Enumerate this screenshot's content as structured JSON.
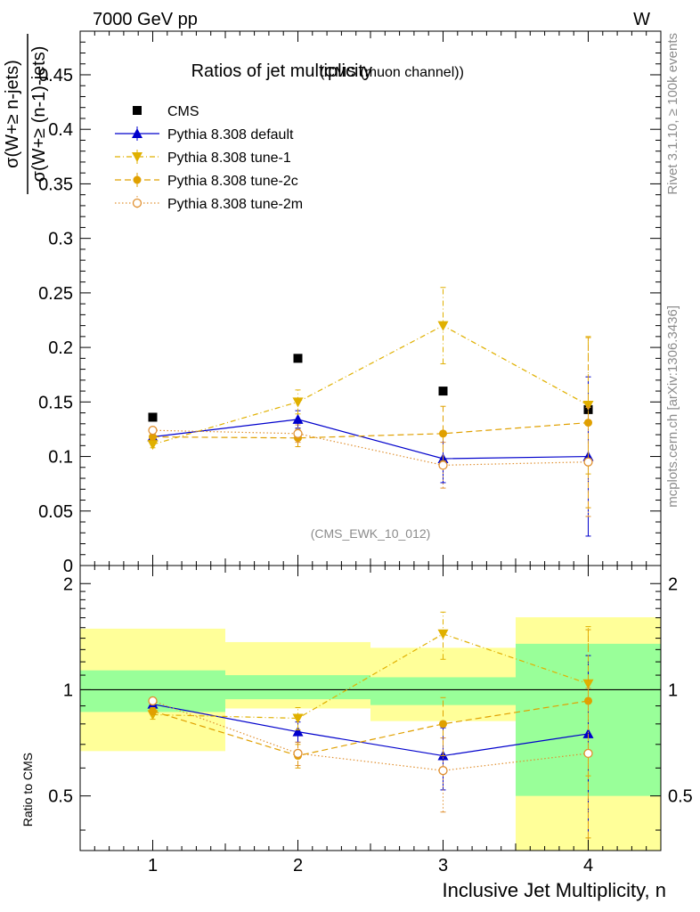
{
  "header": {
    "energy_label": "7000 GeV pp",
    "process_label": "W",
    "rivet_label": "Rivet 3.1.10, ≥ 100k events",
    "mcplots_label": "mcplots.cern.ch [arXiv:1306.3436]"
  },
  "chart_data": [
    {
      "type": "scatter",
      "title": "Ratios of jet multiplicity",
      "subtitle": "(CMS (muon channel))",
      "analysis_label": "(CMS_EWK_10_012)",
      "ylabel_numerator": "σ(W+≥ n-jets)",
      "ylabel_denominator": "σ(W+≥ (n-1)-jets)",
      "xlim": [
        0.5,
        4.5
      ],
      "ylim": [
        0,
        0.49
      ],
      "yticks": [
        0,
        0.05,
        0.1,
        0.15,
        0.2,
        0.25,
        0.3,
        0.35,
        0.4,
        0.45
      ],
      "ytick_labels": [
        "0",
        "0.05",
        "0.1",
        "0.15",
        "0.2",
        "0.25",
        "0.3",
        "0.35",
        "0.4",
        "0.45"
      ],
      "legend_position": "top-left",
      "series": [
        {
          "name": "CMS",
          "color": "#000000",
          "marker": "square",
          "line": "none",
          "x": [
            1,
            2,
            3,
            4
          ],
          "y": [
            0.136,
            0.19,
            0.16,
            0.143
          ]
        },
        {
          "name": "Pythia 8.308 default",
          "color": "#0000cc",
          "marker": "triangle-up",
          "line": "solid",
          "x": [
            1,
            2,
            3,
            4
          ],
          "y": [
            0.118,
            0.134,
            0.098,
            0.1
          ],
          "yerr_low": [
            0.003,
            0.008,
            0.022,
            0.073
          ],
          "yerr_high": [
            0.003,
            0.008,
            0.022,
            0.073
          ]
        },
        {
          "name": "Pythia 8.308 tune-1",
          "color": "#e0b000",
          "marker": "triangle-down",
          "line": "dashdot",
          "x": [
            1,
            2,
            3,
            4
          ],
          "y": [
            0.111,
            0.15,
            0.22,
            0.147
          ],
          "yerr_low": [
            0.003,
            0.011,
            0.035,
            0.063
          ],
          "yerr_high": [
            0.003,
            0.011,
            0.035,
            0.063
          ]
        },
        {
          "name": "Pythia 8.308 tune-2c",
          "color": "#e0a000",
          "marker": "circle",
          "line": "dashed",
          "x": [
            1,
            2,
            3,
            4
          ],
          "y": [
            0.118,
            0.117,
            0.121,
            0.131
          ],
          "yerr_low": [
            0.003,
            0.008,
            0.025,
            0.078
          ],
          "yerr_high": [
            0.003,
            0.008,
            0.025,
            0.078
          ]
        },
        {
          "name": "Pythia 8.308 tune-2m",
          "color": "#e09030",
          "marker": "circle-open",
          "line": "dotted",
          "x": [
            1,
            2,
            3,
            4
          ],
          "y": [
            0.124,
            0.121,
            0.092,
            0.095
          ],
          "yerr_low": [
            0.003,
            0.008,
            0.021,
            0.05
          ],
          "yerr_high": [
            0.003,
            0.008,
            0.021,
            0.05
          ]
        }
      ]
    },
    {
      "type": "scatter",
      "ylabel": "Ratio to CMS",
      "xlabel": "Inclusive Jet Multiplicity, n",
      "xlim": [
        0.5,
        4.5
      ],
      "ylim": [
        0.35,
        2.25
      ],
      "yticks": [
        0.5,
        1,
        2
      ],
      "ytick_labels": [
        "0.5",
        "1",
        "2"
      ],
      "xticks": [
        1,
        2,
        3,
        4
      ],
      "xtick_labels": [
        "1",
        "2",
        "3",
        "4"
      ],
      "reference_line": 1,
      "uncertainty_bands": {
        "colors": {
          "inner": "#99ff99",
          "outer": "#ffff99"
        },
        "bins": [
          {
            "xlow": 0.5,
            "xhigh": 1.5,
            "inner": [
              0.865,
              1.135
            ],
            "outer": [
              0.67,
              1.49
            ]
          },
          {
            "xlow": 1.5,
            "xhigh": 2.5,
            "inner": [
              0.94,
              1.1
            ],
            "outer": [
              0.885,
              1.365
            ]
          },
          {
            "xlow": 2.5,
            "xhigh": 3.5,
            "inner": [
              0.905,
              1.085
            ],
            "outer": [
              0.815,
              1.315
            ]
          },
          {
            "xlow": 3.5,
            "xhigh": 4.5,
            "inner": [
              0.5,
              1.35
            ],
            "outer": [
              0.35,
              1.605
            ]
          }
        ]
      },
      "series": [
        {
          "name": "Pythia 8.308 default",
          "color": "#0000cc",
          "marker": "triangle-up",
          "line": "solid",
          "x": [
            1,
            2,
            3,
            4
          ],
          "y": [
            0.91,
            0.76,
            0.65,
            0.75
          ],
          "yerr_low": [
            0.02,
            0.05,
            0.13,
            0.5
          ],
          "yerr_high": [
            0.02,
            0.05,
            0.13,
            0.5
          ]
        },
        {
          "name": "Pythia 8.308 tune-1",
          "color": "#e0b000",
          "marker": "triangle-down",
          "line": "dashdot",
          "x": [
            1,
            2,
            3,
            4
          ],
          "y": [
            0.85,
            0.83,
            1.44,
            1.04
          ],
          "yerr_low": [
            0.025,
            0.06,
            0.22,
            0.47
          ],
          "yerr_high": [
            0.025,
            0.06,
            0.22,
            0.47
          ]
        },
        {
          "name": "Pythia 8.308 tune-2c",
          "color": "#e0a000",
          "marker": "circle",
          "line": "dashed",
          "x": [
            1,
            2,
            3,
            4
          ],
          "y": [
            0.87,
            0.65,
            0.8,
            0.93
          ],
          "yerr_low": [
            0.02,
            0.05,
            0.15,
            0.55
          ],
          "yerr_high": [
            0.02,
            0.05,
            0.15,
            0.55
          ]
        },
        {
          "name": "Pythia 8.308 tune-2m",
          "color": "#e09030",
          "marker": "circle-open",
          "line": "dotted",
          "x": [
            1,
            2,
            3,
            4
          ],
          "y": [
            0.93,
            0.66,
            0.59,
            0.66
          ],
          "yerr_low": [
            0.02,
            0.05,
            0.14,
            0.35
          ],
          "yerr_high": [
            0.02,
            0.05,
            0.14,
            0.35
          ]
        }
      ]
    }
  ]
}
